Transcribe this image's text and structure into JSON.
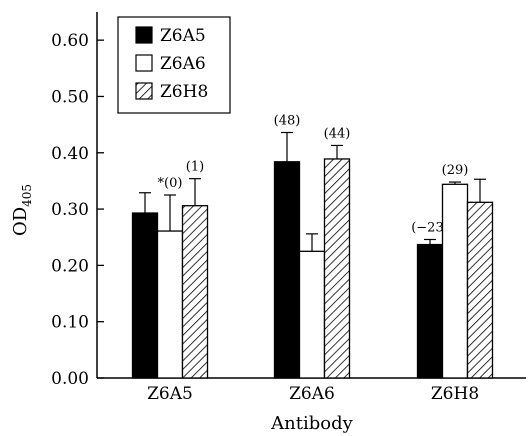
{
  "chart_data": {
    "type": "bar",
    "xlabel": "Antibody",
    "ylabel": "OD",
    "ylabel_sub": "405",
    "ylim": [
      0,
      0.65
    ],
    "yticks": [
      "0.00",
      "0.10",
      "0.20",
      "0.30",
      "0.40",
      "0.50",
      "0.60"
    ],
    "ytick_values": [
      0,
      0.1,
      0.2,
      0.3,
      0.4,
      0.5,
      0.6
    ],
    "categories": [
      "Z6A5",
      "Z6A6",
      "Z6H8"
    ],
    "series": [
      {
        "name": "Z6A5",
        "style": "solid",
        "values": [
          0.293,
          0.384,
          0.237
        ],
        "errors": [
          0.036,
          0.052,
          0.009
        ],
        "annotations": [
          "",
          "(48)",
          "(−23)"
        ]
      },
      {
        "name": "Z6A6",
        "style": "open",
        "values": [
          0.261,
          0.225,
          0.344
        ],
        "errors": [
          0.064,
          0.031,
          0.004
        ],
        "annotations": [
          "*(0)",
          "",
          "(29)"
        ]
      },
      {
        "name": "Z6H8",
        "style": "hatched",
        "values": [
          0.306,
          0.389,
          0.312
        ],
        "errors": [
          0.048,
          0.024,
          0.041
        ],
        "annotations": [
          "(1)",
          "(44)",
          ""
        ]
      }
    ],
    "legend_position": "top-left",
    "grid": false,
    "colors": {
      "solid": "#000000",
      "open": "#ffffff",
      "stroke": "#000000"
    }
  }
}
